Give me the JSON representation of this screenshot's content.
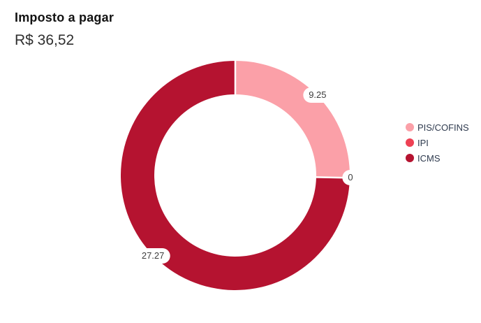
{
  "chart_data": {
    "type": "pie",
    "variant": "donut",
    "title": "Imposto a pagar",
    "subtitle": "R$ 36,52",
    "total": 36.52,
    "start_angle_deg": 0,
    "direction": "clockwise",
    "legend_position": "right",
    "inner_radius_ratio": 0.71,
    "series": [
      {
        "name": "PIS/COFINS",
        "value": 9.25,
        "label": "9.25",
        "color": "#fba0a8"
      },
      {
        "name": "IPI",
        "value": 0,
        "label": "0",
        "color": "#ee4154"
      },
      {
        "name": "ICMS",
        "value": 27.27,
        "label": "27.27",
        "color": "#b51330"
      }
    ],
    "separator_color": "#ffffff",
    "label_text_color": "#3c3c3c"
  }
}
